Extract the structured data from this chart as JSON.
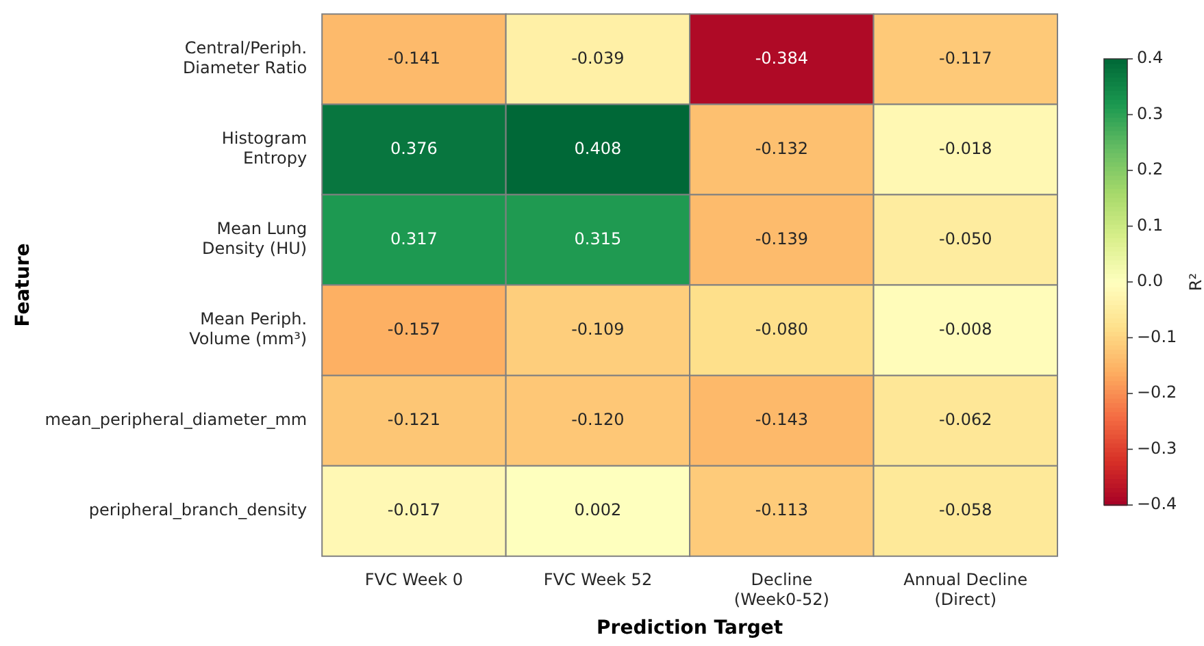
{
  "chart_data": {
    "type": "heatmap",
    "xlabel": "Prediction Target",
    "ylabel": "Feature",
    "clabel": "R²",
    "categories": [
      "FVC Week 0",
      "FVC Week 52",
      "Decline\n(Week0-52)",
      "Annual Decline\n(Direct)"
    ],
    "y_categories": [
      "Central/Periph.\nDiameter Ratio",
      "Histogram\nEntropy",
      "Mean Lung\nDensity (HU)",
      "Mean Periph.\nVolume (mm³)",
      "mean_peripheral_diameter_mm",
      "peripheral_branch_density"
    ],
    "cells": [
      [
        -0.141,
        -0.039,
        -0.384,
        -0.117
      ],
      [
        0.376,
        0.408,
        -0.132,
        -0.018
      ],
      [
        0.317,
        0.315,
        -0.139,
        -0.05
      ],
      [
        -0.157,
        -0.109,
        -0.08,
        -0.008
      ],
      [
        -0.121,
        -0.12,
        -0.143,
        -0.062
      ],
      [
        -0.017,
        0.002,
        -0.113,
        -0.058
      ]
    ],
    "cell_labels": [
      [
        "-0.141",
        "-0.039",
        "-0.384",
        "-0.117"
      ],
      [
        "0.376",
        "0.408",
        "-0.132",
        "-0.018"
      ],
      [
        "0.317",
        "0.315",
        "-0.139",
        "-0.050"
      ],
      [
        "-0.157",
        "-0.109",
        "-0.080",
        "-0.008"
      ],
      [
        "-0.121",
        "-0.120",
        "-0.143",
        "-0.062"
      ],
      [
        "-0.017",
        "0.002",
        "-0.113",
        "-0.058"
      ]
    ],
    "clim": [
      -0.4,
      0.4
    ],
    "cticks": [
      {
        "value": -0.4,
        "label": "−0.4"
      },
      {
        "value": -0.3,
        "label": "−0.3"
      },
      {
        "value": -0.2,
        "label": "−0.2"
      },
      {
        "value": -0.1,
        "label": "−0.1"
      },
      {
        "value": 0,
        "label": "0.0"
      },
      {
        "value": 0.1,
        "label": "0.1"
      },
      {
        "value": 0.2,
        "label": "0.2"
      },
      {
        "value": 0.3,
        "label": "0.3"
      },
      {
        "value": 0.4,
        "label": "0.4"
      }
    ]
  }
}
